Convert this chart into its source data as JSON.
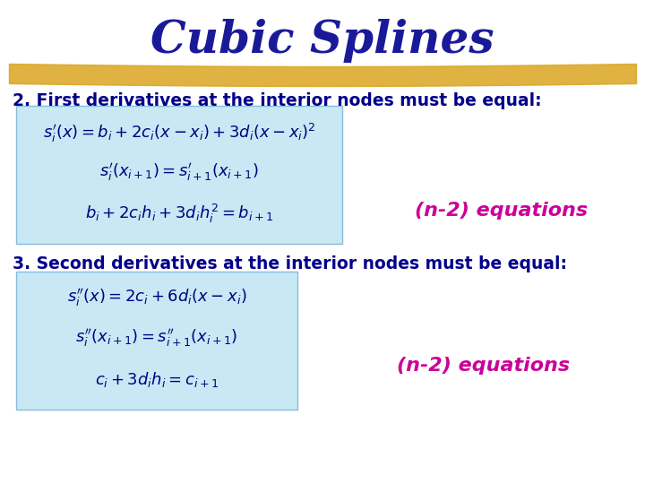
{
  "title": "Cubic Splines",
  "title_color": "#1a1a99",
  "title_fontsize": 36,
  "bg_color": "#ffffff",
  "header1": "2. First derivatives at the interior nodes must be equal:",
  "header2": "3. Second derivatives at the interior nodes must be equal:",
  "header_color": "#00008B",
  "header_fontsize": 13.5,
  "eq_label": "(n-2) equations",
  "eq_label_color": "#cc0099",
  "eq_label_fontsize": 16,
  "underline_color": "#DAA520",
  "box1_eq1": "$s_i'(x) = b_i + 2c_i(x - x_i) + 3d_i(x - x_i)^2$",
  "box1_eq2": "$s_i'(x_{i+1}) = s_{i+1}'(x_{i+1})$",
  "box1_eq3": "$b_i + 2c_i h_i + 3d_i h_i^2 = b_{i+1}$",
  "box2_eq1": "$s_i''(x) = 2c_i + 6d_i(x - x_i)$",
  "box2_eq2": "$s_i''(x_{i+1}) = s_{i+1}''(x_{i+1})$",
  "box2_eq3": "$c_i + 3d_i h_i = c_{i+1}$",
  "eq_fontsize": 13
}
